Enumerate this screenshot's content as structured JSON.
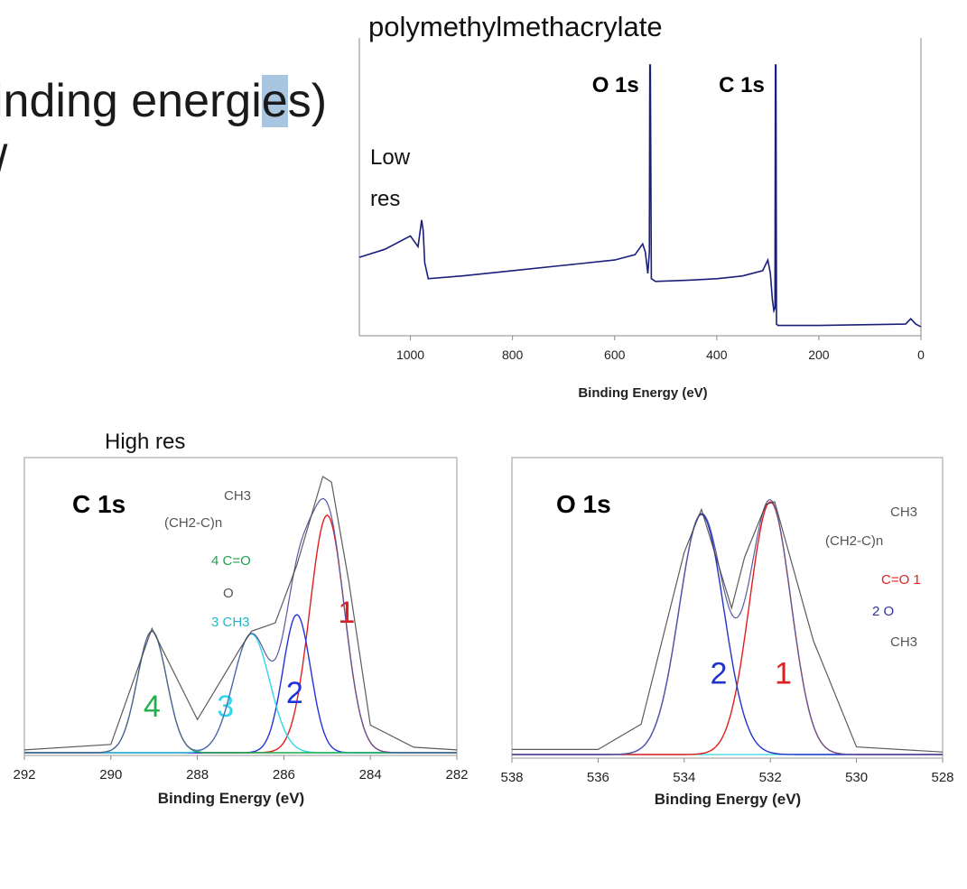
{
  "slide": {
    "line1_before": "inding energi",
    "line1_highlight": "e",
    "line1_after": "s)",
    "line2": "/"
  },
  "colors": {
    "survey": "#1a1f7a",
    "envelope": "#3f3f3f",
    "c1": "#e01e1e",
    "c2": "#2233dd",
    "c3": "#33d6e8",
    "c4": "#22b04a",
    "o1": "#e01e1e",
    "o2": "#2233cc",
    "baseline": "#33d6e8"
  },
  "chart_data": [
    {
      "type": "line",
      "title": "polymethylmethacrylate",
      "annotation": "Low res",
      "annotation_lines": [
        "Low",
        "res"
      ],
      "peak_labels": [
        {
          "text": "O 1s",
          "x": 531
        },
        {
          "text": "C 1s",
          "x": 285
        }
      ],
      "xlabel": "Binding Energy (eV)",
      "ylabel": "",
      "xlim": [
        1100,
        0
      ],
      "ylim": [
        0,
        100
      ],
      "x_ticks": [
        "1000",
        "800",
        "600",
        "400",
        "200",
        "0"
      ],
      "x_tick_values": [
        1000,
        800,
        600,
        400,
        200,
        0
      ],
      "series": [
        {
          "name": "survey",
          "x": [
            1100,
            1050,
            1000,
            985,
            978,
            975,
            972,
            965,
            900,
            800,
            700,
            600,
            560,
            545,
            540,
            535,
            532,
            531,
            530,
            528,
            520,
            450,
            400,
            350,
            310,
            300,
            295,
            291,
            288,
            286,
            285,
            284,
            283,
            280,
            250,
            200,
            100,
            30,
            20,
            10,
            0
          ],
          "y": [
            28,
            31,
            36,
            32,
            42,
            38,
            26,
            20,
            21,
            23,
            25,
            27,
            29,
            33,
            30,
            22,
            30,
            100,
            100,
            20,
            19,
            19.5,
            20,
            21,
            23,
            27,
            22,
            12,
            8,
            9,
            100,
            100,
            3,
            2.5,
            2.5,
            2.5,
            2.8,
            3,
            5,
            3,
            2
          ]
        }
      ]
    },
    {
      "type": "line",
      "annotation": "High res",
      "panel_label": "C 1s",
      "structure_text": [
        "CH3",
        "(CH2-C)n",
        "4 C=O",
        "O",
        "3 CH3"
      ],
      "xlabel": "Binding Energy (eV)",
      "ylabel": "",
      "xlim": [
        292,
        282
      ],
      "ylim": [
        0,
        100
      ],
      "x_ticks": [
        "292",
        "290",
        "288",
        "286",
        "284",
        "282"
      ],
      "x_tick_values": [
        292,
        290,
        288,
        286,
        284,
        282
      ],
      "components": [
        {
          "label": "1",
          "center": 285.0,
          "amplitude": 86,
          "sigma": 0.4,
          "color": "#e01e1e"
        },
        {
          "label": "2",
          "center": 285.7,
          "amplitude": 50,
          "sigma": 0.32,
          "color": "#2233dd"
        },
        {
          "label": "3",
          "center": 286.75,
          "amplitude": 43,
          "sigma": 0.42,
          "color": "#33d6e8"
        },
        {
          "label": "4",
          "center": 289.05,
          "amplitude": 44,
          "sigma": 0.34,
          "color": "#22b04a"
        }
      ],
      "series": [
        {
          "name": "envelope",
          "x": [
            292,
            290,
            289.05,
            288,
            287,
            286.75,
            286.2,
            285.7,
            285.1,
            284.9,
            284.5,
            284,
            283,
            282
          ],
          "y": [
            1,
            3,
            45,
            12,
            38,
            44,
            47,
            68,
            100,
            98,
            62,
            10,
            2,
            1
          ]
        }
      ]
    },
    {
      "type": "line",
      "panel_label": "O 1s",
      "structure_text": [
        "CH3",
        "(CH2-C)n",
        "C=O 1",
        "2 O",
        "CH3"
      ],
      "xlabel": "Binding Energy (eV)",
      "ylabel": "",
      "xlim": [
        538,
        528
      ],
      "ylim": [
        0,
        100
      ],
      "x_ticks": [
        "538",
        "536",
        "534",
        "532",
        "530",
        "528"
      ],
      "x_tick_values": [
        538,
        536,
        534,
        532,
        530,
        528
      ],
      "components": [
        {
          "label": "1",
          "center": 532.0,
          "amplitude": 100,
          "sigma": 0.48,
          "color": "#e01e1e"
        },
        {
          "label": "2",
          "center": 533.6,
          "amplitude": 95,
          "sigma": 0.52,
          "color": "#2233cc"
        }
      ],
      "series": [
        {
          "name": "envelope",
          "x": [
            538,
            536,
            535,
            534,
            533.6,
            532.9,
            532.6,
            532.1,
            531.9,
            531,
            530,
            528
          ],
          "y": [
            2,
            2,
            12,
            80,
            97,
            58,
            78,
            99,
            100,
            45,
            3,
            1
          ]
        }
      ]
    }
  ]
}
